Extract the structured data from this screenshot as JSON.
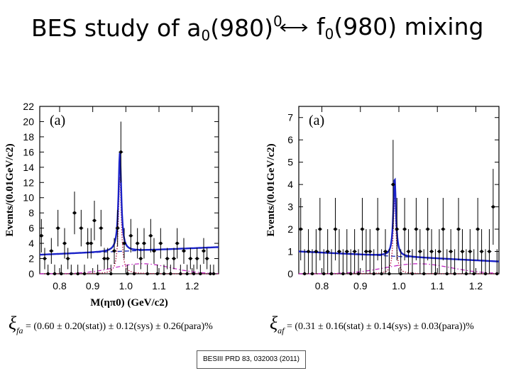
{
  "slide": {
    "title_left_main": "BES study of a",
    "title_left_sub": "0",
    "title_left_mid": "(980)",
    "title_left_sup": "0",
    "title_right_main": "f",
    "title_right_sub": "0",
    "title_right_rest": "(980) mixing",
    "reference": "BESIII PRD 83, 032003 (2011)"
  },
  "formulas": {
    "left": {
      "xi": "ξ",
      "sub": "fa",
      "text": " = (0.60 ± 0.20(stat)) ± 0.12(sys) ± 0.26(para)%"
    },
    "right": {
      "xi": "ξ",
      "sub": "af",
      "text": " = (0.31 ± 0.16(stat) ± 0.14(sys) ± 0.03(para))%"
    }
  },
  "chart_data": [
    {
      "type": "scatter",
      "panel_label": "(a)",
      "xlabel": "M(ηπ0) (GeV/c2)",
      "ylabel": "Events/(0.01GeV/c2)",
      "xlim": [
        0.74,
        1.28
      ],
      "ylim": [
        0,
        22
      ],
      "xticks": [
        0.8,
        0.9,
        1.0,
        1.1,
        1.2
      ],
      "yticks": [
        0,
        2,
        4,
        6,
        8,
        10,
        12,
        14,
        16,
        18,
        20,
        22
      ],
      "points": [
        {
          "x": 0.745,
          "y": 5,
          "err": 2.2
        },
        {
          "x": 0.755,
          "y": 2,
          "err": 1.4
        },
        {
          "x": 0.765,
          "y": 0,
          "err": 1.2
        },
        {
          "x": 0.775,
          "y": 3,
          "err": 1.7
        },
        {
          "x": 0.785,
          "y": 0,
          "err": 1.2
        },
        {
          "x": 0.795,
          "y": 6,
          "err": 2.4
        },
        {
          "x": 0.805,
          "y": 0,
          "err": 1.2
        },
        {
          "x": 0.815,
          "y": 4,
          "err": 2.0
        },
        {
          "x": 0.825,
          "y": 2,
          "err": 1.4
        },
        {
          "x": 0.835,
          "y": 0,
          "err": 1.2
        },
        {
          "x": 0.845,
          "y": 8,
          "err": 2.8
        },
        {
          "x": 0.855,
          "y": 0,
          "err": 1.2
        },
        {
          "x": 0.865,
          "y": 6,
          "err": 2.4
        },
        {
          "x": 0.875,
          "y": 0,
          "err": 1.2
        },
        {
          "x": 0.885,
          "y": 4,
          "err": 2.0
        },
        {
          "x": 0.895,
          "y": 4,
          "err": 2.0
        },
        {
          "x": 0.905,
          "y": 7,
          "err": 2.6
        },
        {
          "x": 0.915,
          "y": 0,
          "err": 1.2
        },
        {
          "x": 0.925,
          "y": 6,
          "err": 2.4
        },
        {
          "x": 0.935,
          "y": 2,
          "err": 1.4
        },
        {
          "x": 0.945,
          "y": 2,
          "err": 1.4
        },
        {
          "x": 0.955,
          "y": 0,
          "err": 1.2
        },
        {
          "x": 0.965,
          "y": 3,
          "err": 1.7
        },
        {
          "x": 0.975,
          "y": 6,
          "err": 2.4
        },
        {
          "x": 0.985,
          "y": 16,
          "err": 4.0
        },
        {
          "x": 0.995,
          "y": 4,
          "err": 2.0
        },
        {
          "x": 1.005,
          "y": 0,
          "err": 1.2
        },
        {
          "x": 1.015,
          "y": 5,
          "err": 2.2
        },
        {
          "x": 1.025,
          "y": 0,
          "err": 1.2
        },
        {
          "x": 1.035,
          "y": 4,
          "err": 2.0
        },
        {
          "x": 1.045,
          "y": 2,
          "err": 1.4
        },
        {
          "x": 1.055,
          "y": 4,
          "err": 2.0
        },
        {
          "x": 1.065,
          "y": 0,
          "err": 1.2
        },
        {
          "x": 1.075,
          "y": 5,
          "err": 2.2
        },
        {
          "x": 1.085,
          "y": 3,
          "err": 1.7
        },
        {
          "x": 1.095,
          "y": 0,
          "err": 1.2
        },
        {
          "x": 1.105,
          "y": 4,
          "err": 2.0
        },
        {
          "x": 1.115,
          "y": 0,
          "err": 1.2
        },
        {
          "x": 1.125,
          "y": 2,
          "err": 1.4
        },
        {
          "x": 1.135,
          "y": 0,
          "err": 1.2
        },
        {
          "x": 1.145,
          "y": 2,
          "err": 1.4
        },
        {
          "x": 1.155,
          "y": 4,
          "err": 2.0
        },
        {
          "x": 1.165,
          "y": 0,
          "err": 1.2
        },
        {
          "x": 1.175,
          "y": 3,
          "err": 1.7
        },
        {
          "x": 1.185,
          "y": 0,
          "err": 1.2
        },
        {
          "x": 1.195,
          "y": 2,
          "err": 1.4
        },
        {
          "x": 1.205,
          "y": 0,
          "err": 1.2
        },
        {
          "x": 1.215,
          "y": 2,
          "err": 1.4
        },
        {
          "x": 1.225,
          "y": 0,
          "err": 1.2
        },
        {
          "x": 1.235,
          "y": 3,
          "err": 1.7
        },
        {
          "x": 1.245,
          "y": 2,
          "err": 1.4
        },
        {
          "x": 1.255,
          "y": 0,
          "err": 1.2
        },
        {
          "x": 1.265,
          "y": 0,
          "err": 1.2
        }
      ],
      "fit": {
        "peak_x": 0.982,
        "peak_height": 13.0,
        "width": 0.005,
        "bg_start": 2.5,
        "bg_end": 3.5
      }
    },
    {
      "type": "scatter",
      "panel_label": "(a)",
      "xlabel": "",
      "ylabel": "Events/(0.01GeV/c2)",
      "xlim": [
        0.74,
        1.26
      ],
      "ylim": [
        0,
        7.5
      ],
      "xticks": [
        0.8,
        0.9,
        1.0,
        1.1,
        1.2
      ],
      "yticks": [
        0,
        1,
        2,
        3,
        4,
        5,
        6,
        7
      ],
      "points": [
        {
          "x": 0.745,
          "y": 2,
          "err": 1.4
        },
        {
          "x": 0.755,
          "y": 0,
          "err": 1.1
        },
        {
          "x": 0.765,
          "y": 1,
          "err": 1.0
        },
        {
          "x": 0.775,
          "y": 0,
          "err": 1.1
        },
        {
          "x": 0.785,
          "y": 1,
          "err": 1.0
        },
        {
          "x": 0.795,
          "y": 2,
          "err": 1.4
        },
        {
          "x": 0.805,
          "y": 0,
          "err": 1.1
        },
        {
          "x": 0.815,
          "y": 1,
          "err": 1.0
        },
        {
          "x": 0.825,
          "y": 0,
          "err": 1.1
        },
        {
          "x": 0.835,
          "y": 2,
          "err": 1.4
        },
        {
          "x": 0.845,
          "y": 1,
          "err": 1.0
        },
        {
          "x": 0.855,
          "y": 0,
          "err": 1.1
        },
        {
          "x": 0.865,
          "y": 1,
          "err": 1.0
        },
        {
          "x": 0.875,
          "y": 0,
          "err": 1.1
        },
        {
          "x": 0.885,
          "y": 1,
          "err": 1.0
        },
        {
          "x": 0.895,
          "y": 0,
          "err": 1.1
        },
        {
          "x": 0.905,
          "y": 2,
          "err": 1.4
        },
        {
          "x": 0.915,
          "y": 1,
          "err": 1.0
        },
        {
          "x": 0.925,
          "y": 1,
          "err": 1.0
        },
        {
          "x": 0.935,
          "y": 0,
          "err": 1.1
        },
        {
          "x": 0.945,
          "y": 2,
          "err": 1.4
        },
        {
          "x": 0.955,
          "y": 0,
          "err": 1.1
        },
        {
          "x": 0.965,
          "y": 1,
          "err": 1.0
        },
        {
          "x": 0.975,
          "y": 0,
          "err": 1.1
        },
        {
          "x": 0.985,
          "y": 4,
          "err": 2.0
        },
        {
          "x": 0.995,
          "y": 2,
          "err": 1.4
        },
        {
          "x": 1.005,
          "y": 0,
          "err": 1.1
        },
        {
          "x": 1.015,
          "y": 2,
          "err": 1.4
        },
        {
          "x": 1.025,
          "y": 1,
          "err": 1.0
        },
        {
          "x": 1.035,
          "y": 0,
          "err": 1.1
        },
        {
          "x": 1.045,
          "y": 2,
          "err": 1.4
        },
        {
          "x": 1.055,
          "y": 1,
          "err": 1.0
        },
        {
          "x": 1.065,
          "y": 0,
          "err": 1.1
        },
        {
          "x": 1.075,
          "y": 2,
          "err": 1.4
        },
        {
          "x": 1.085,
          "y": 1,
          "err": 1.0
        },
        {
          "x": 1.095,
          "y": 0,
          "err": 1.1
        },
        {
          "x": 1.105,
          "y": 1,
          "err": 1.0
        },
        {
          "x": 1.115,
          "y": 2,
          "err": 1.4
        },
        {
          "x": 1.125,
          "y": 0,
          "err": 1.1
        },
        {
          "x": 1.135,
          "y": 1,
          "err": 1.0
        },
        {
          "x": 1.145,
          "y": 0,
          "err": 1.1
        },
        {
          "x": 1.155,
          "y": 2,
          "err": 1.4
        },
        {
          "x": 1.165,
          "y": 1,
          "err": 1.0
        },
        {
          "x": 1.175,
          "y": 0,
          "err": 1.1
        },
        {
          "x": 1.185,
          "y": 1,
          "err": 1.0
        },
        {
          "x": 1.195,
          "y": 0,
          "err": 1.1
        },
        {
          "x": 1.205,
          "y": 2,
          "err": 1.4
        },
        {
          "x": 1.215,
          "y": 1,
          "err": 1.0
        },
        {
          "x": 1.225,
          "y": 0,
          "err": 1.1
        },
        {
          "x": 1.235,
          "y": 1,
          "err": 1.0
        },
        {
          "x": 1.245,
          "y": 3,
          "err": 1.7
        },
        {
          "x": 1.255,
          "y": 0,
          "err": 1.1
        }
      ],
      "fit": {
        "peak_x": 0.989,
        "peak_height": 3.5,
        "width": 0.004,
        "bg_start": 1.0,
        "bg_end": 0.55
      }
    }
  ]
}
